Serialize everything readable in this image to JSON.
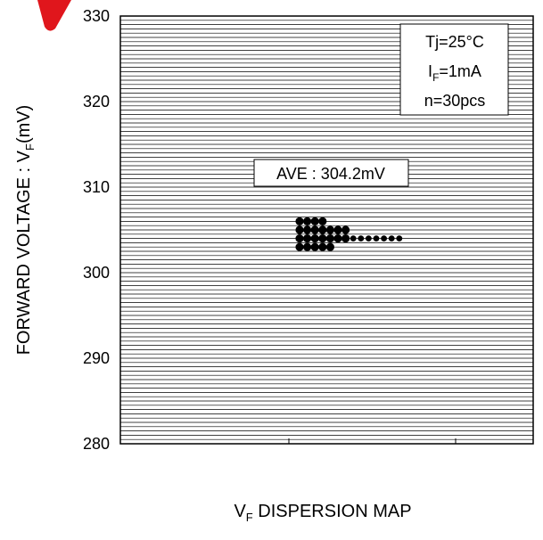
{
  "chart_data": {
    "type": "scatter",
    "title": "",
    "xlabel_main": "V",
    "xlabel_sub": "F",
    "xlabel_rest": " DISPERSION MAP",
    "ylabel_main": "FORWARD VOLTAGE : V",
    "ylabel_sub": "F",
    "ylabel_rest": "(mV)",
    "ylim": [
      280,
      330
    ],
    "yticks": [
      "280",
      "290",
      "300",
      "310",
      "320",
      "330"
    ],
    "grid": "horizontal lines every 0.5 mV",
    "conditions": {
      "tj": "Tj=25°C",
      "if_main": "I",
      "if_sub": "F",
      "if_rest": "=1mA",
      "n": "n=30pcs"
    },
    "average_label": "AVE : 304.2mV",
    "dispersion_rows": [
      {
        "value": 306.0,
        "count": 4
      },
      {
        "value": 305.0,
        "count": 7
      },
      {
        "value": 304.0,
        "count": 14
      },
      {
        "value": 303.0,
        "count": 5
      }
    ]
  }
}
